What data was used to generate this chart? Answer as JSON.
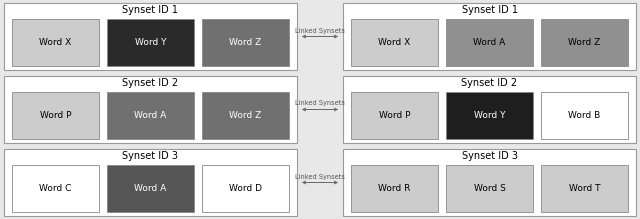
{
  "fig_bg": "#e8e8e8",
  "rows": [
    {
      "left_title": "Synset ID 1",
      "right_title": "Synset ID 1",
      "left_words": [
        "Word X",
        "Word Y",
        "Word Z"
      ],
      "right_words": [
        "Word X",
        "Word A",
        "Word Z"
      ],
      "left_colors": [
        "#cccccc",
        "#2a2a2a",
        "#707070"
      ],
      "right_colors": [
        "#cccccc",
        "#909090",
        "#909090"
      ],
      "left_text_colors": [
        "#000000",
        "#ffffff",
        "#ffffff"
      ],
      "right_text_colors": [
        "#000000",
        "#000000",
        "#000000"
      ],
      "arrow_label": "Linked Synsets"
    },
    {
      "left_title": "Synset ID 2",
      "right_title": "Synset ID 2",
      "left_words": [
        "Word P",
        "Word A",
        "Word Z"
      ],
      "right_words": [
        "Word P",
        "Word Y",
        "Word B"
      ],
      "left_colors": [
        "#cccccc",
        "#707070",
        "#707070"
      ],
      "right_colors": [
        "#cccccc",
        "#1e1e1e",
        "#ffffff"
      ],
      "left_text_colors": [
        "#000000",
        "#ffffff",
        "#ffffff"
      ],
      "right_text_colors": [
        "#000000",
        "#ffffff",
        "#000000"
      ],
      "arrow_label": "Linked Synsets"
    },
    {
      "left_title": "Synset ID 3",
      "right_title": "Synset ID 3",
      "left_words": [
        "Word C",
        "Word A",
        "Word D"
      ],
      "right_words": [
        "Word R",
        "Word S",
        "Word T"
      ],
      "left_colors": [
        "#ffffff",
        "#555555",
        "#ffffff"
      ],
      "right_colors": [
        "#cccccc",
        "#cccccc",
        "#cccccc"
      ],
      "left_text_colors": [
        "#000000",
        "#ffffff",
        "#000000"
      ],
      "right_text_colors": [
        "#000000",
        "#000000",
        "#000000"
      ],
      "arrow_label": "Linked Synsets"
    }
  ]
}
